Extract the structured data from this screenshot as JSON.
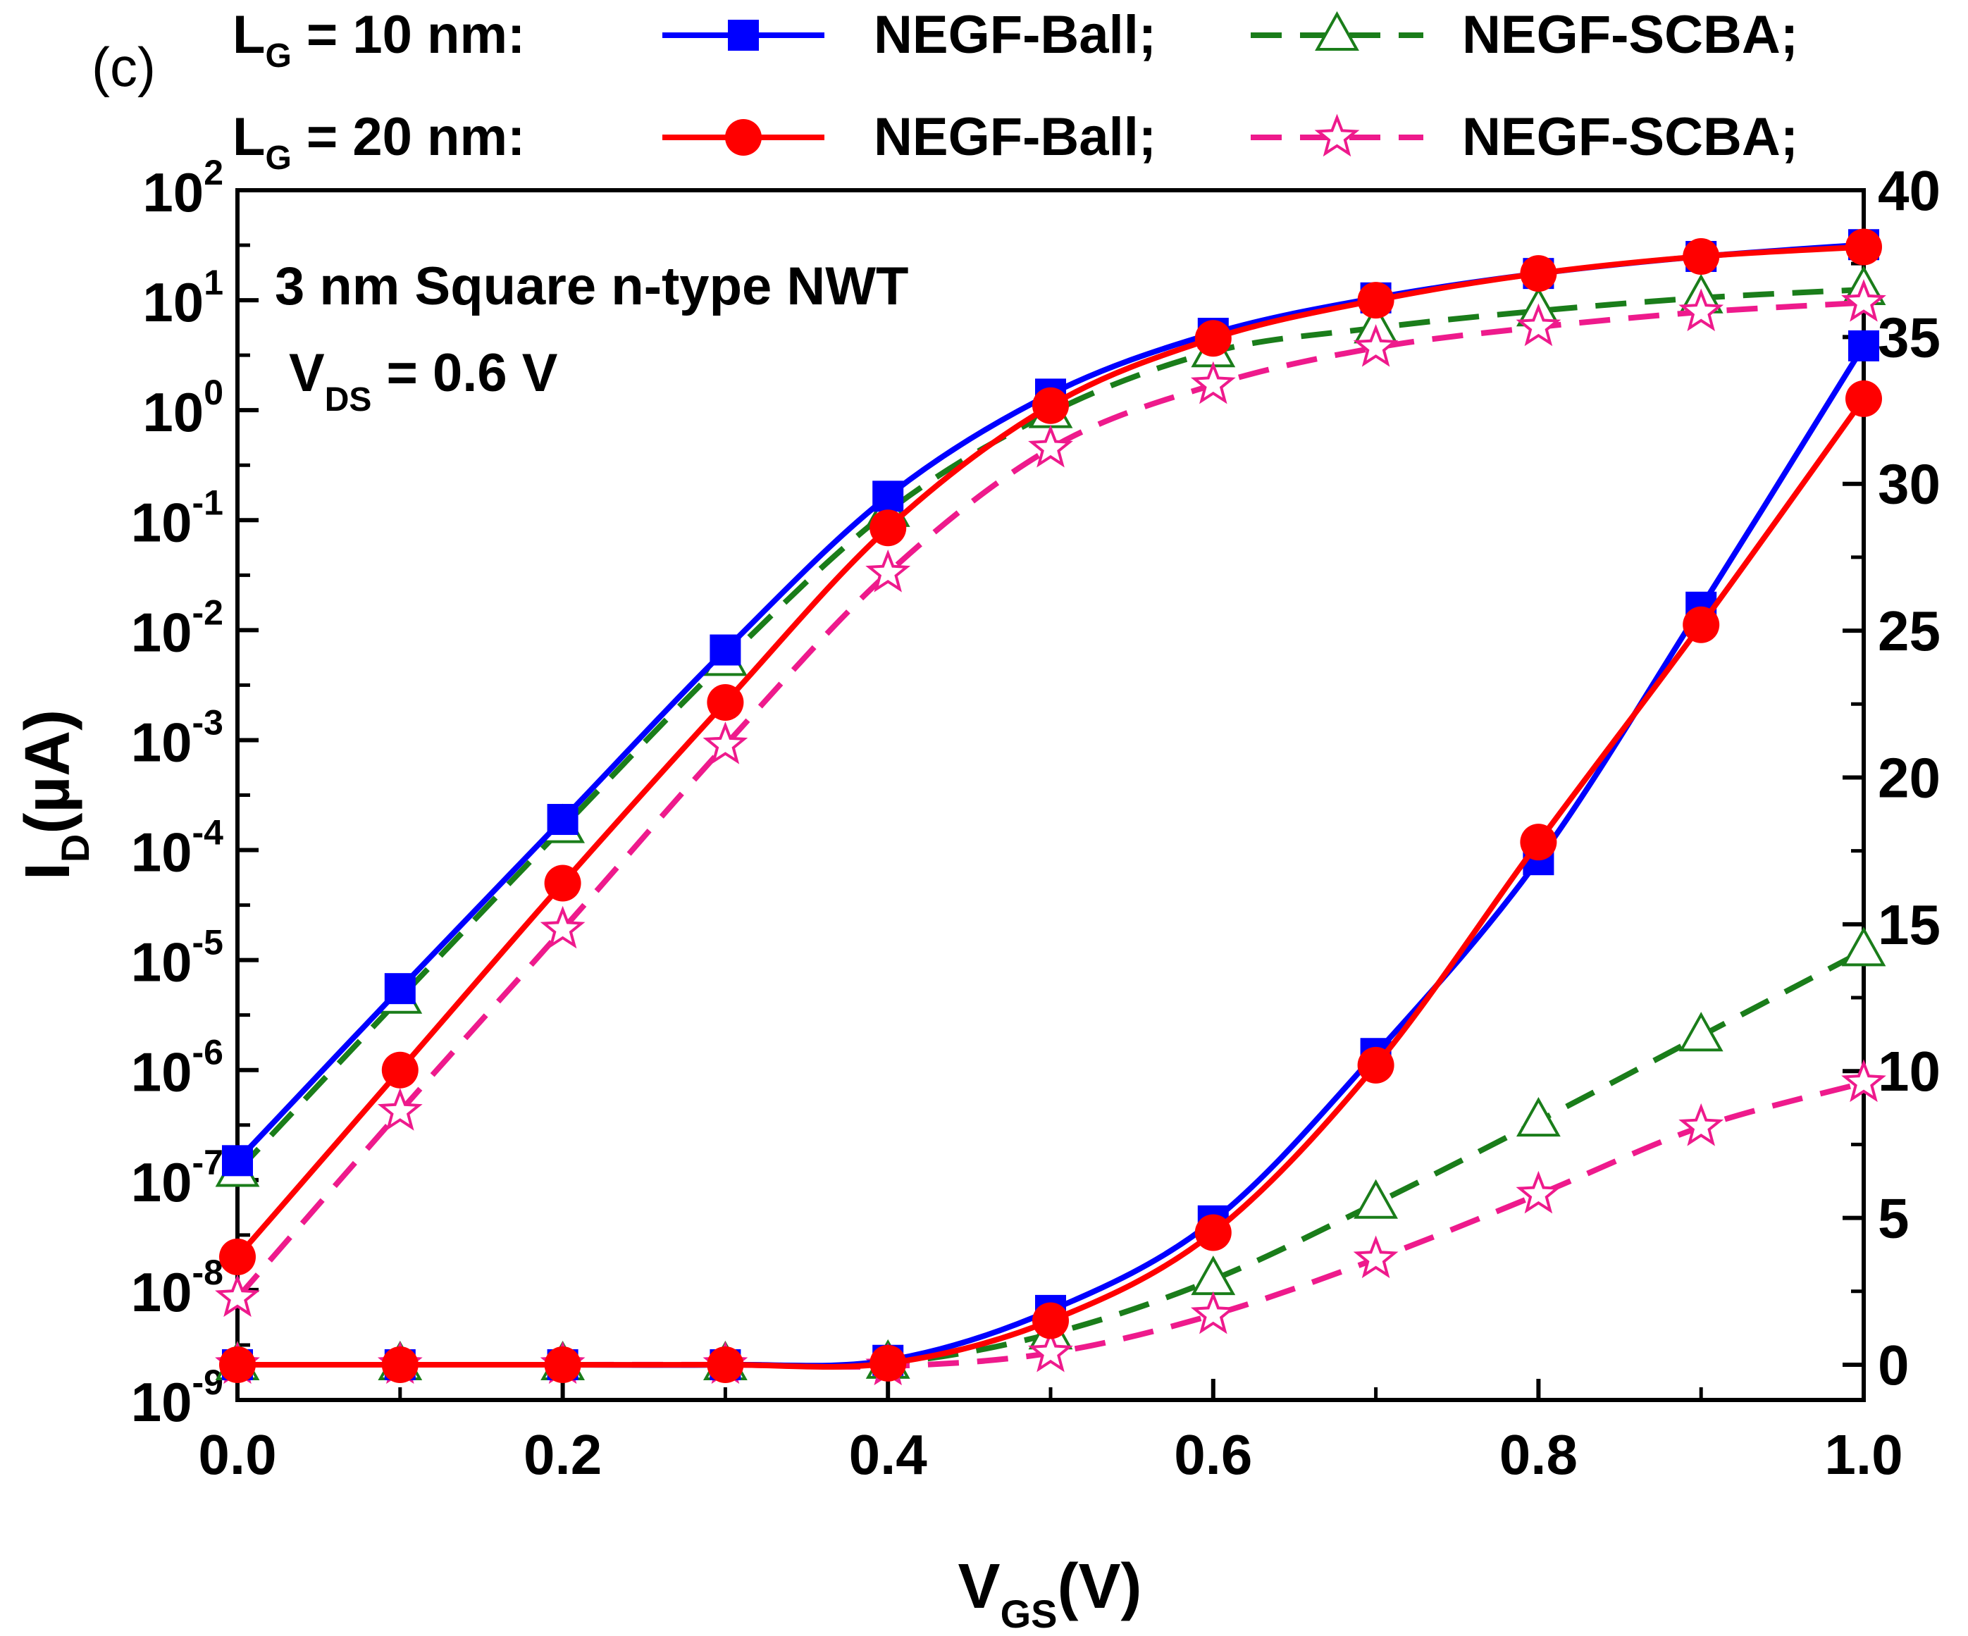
{
  "panel_label": "(c)",
  "legend": {
    "row1_prefix": "L",
    "row1_prefix_sub": "G",
    "row1_value": " = 10 nm:",
    "row2_prefix": "L",
    "row2_prefix_sub": "G",
    "row2_value": " = 20 nm:",
    "ball_label": "NEGF-Ball;",
    "scba_label": "NEGF-SCBA;"
  },
  "annotation": {
    "line1": "3 nm Square n-type NWT",
    "line2_main": "V",
    "line2_sub": "DS",
    "line2_rest": " = 0.6 V"
  },
  "colors": {
    "lg10_ball": "#0000ff",
    "lg10_scba": "#1a7d1a",
    "lg20_ball": "#ff0000",
    "lg20_scba": "#ee1a8c"
  },
  "chart_data": {
    "type": "line",
    "x": [
      0.0,
      0.1,
      0.2,
      0.3,
      0.4,
      0.5,
      0.6,
      0.7,
      0.8,
      0.9,
      1.0
    ],
    "xlabel_main": "V",
    "xlabel_sub": "GS",
    "xlabel_rest": "(V)",
    "xlim": [
      0.0,
      1.0
    ],
    "xticks": [
      "0.0",
      "0.2",
      "0.4",
      "0.6",
      "0.8",
      "1.0"
    ],
    "left_axis": {
      "scale": "log",
      "ylabel_main": "I",
      "ylabel_sub": "D",
      "ylabel_rest": "(µA)",
      "ylim": [
        1e-09,
        100
      ],
      "ticks": [
        {
          "base": "10",
          "exp": "2"
        },
        {
          "base": "10",
          "exp": "1"
        },
        {
          "base": "10",
          "exp": "0"
        },
        {
          "base": "10",
          "exp": "-1"
        },
        {
          "base": "10",
          "exp": "-2"
        },
        {
          "base": "10",
          "exp": "-3"
        },
        {
          "base": "10",
          "exp": "-4"
        },
        {
          "base": "10",
          "exp": "-5"
        },
        {
          "base": "10",
          "exp": "-6"
        },
        {
          "base": "10",
          "exp": "-7"
        },
        {
          "base": "10",
          "exp": "-8"
        },
        {
          "base": "10",
          "exp": "-9"
        }
      ]
    },
    "right_axis": {
      "scale": "linear",
      "ylim": [
        -1.2,
        40
      ],
      "ticks": [
        "0",
        "5",
        "10",
        "15",
        "20",
        "25",
        "30",
        "35",
        "40"
      ]
    },
    "series": [
      {
        "name": "L_G = 10 nm NEGF-Ball",
        "group": "lg10_ball",
        "style": "solid",
        "marker": "square",
        "log_values": [
          1.5e-07,
          5.5e-06,
          0.00019,
          0.0066,
          0.165,
          1.4,
          5.0,
          10.5,
          17.5,
          25.0,
          32.0
        ],
        "linear_values": [
          0.0,
          0.0,
          0.0,
          0.0,
          0.15,
          1.85,
          4.9,
          10.6,
          17.2,
          25.8,
          34.7
        ]
      },
      {
        "name": "L_G = 10 nm NEGF-SCBA",
        "group": "lg10_scba",
        "style": "dashed",
        "marker": "triangle",
        "log_values": [
          1.2e-07,
          4.5e-06,
          0.00016,
          0.0053,
          0.12,
          0.95,
          3.4,
          5.6,
          8.0,
          10.5,
          12.5
        ],
        "linear_values": [
          0.0,
          0.0,
          0.0,
          0.0,
          0.05,
          1.05,
          2.9,
          5.5,
          8.3,
          11.2,
          14.1
        ]
      },
      {
        "name": "L_G = 20 nm NEGF-Ball",
        "group": "lg20_ball",
        "style": "solid",
        "marker": "circle",
        "log_values": [
          2e-08,
          1e-06,
          5e-05,
          0.0022,
          0.085,
          1.1,
          4.5,
          10.0,
          17.5,
          25.0,
          30.5
        ],
        "linear_values": [
          0.0,
          0.0,
          0.0,
          0.0,
          0.05,
          1.5,
          4.5,
          10.2,
          17.8,
          25.2,
          32.9
        ]
      },
      {
        "name": "L_G = 20 nm NEGF-SCBA",
        "group": "lg20_scba",
        "style": "dashed",
        "marker": "star",
        "log_values": [
          8.5e-09,
          4.2e-07,
          1.9e-05,
          0.0009,
          0.033,
          0.45,
          1.7,
          3.7,
          5.7,
          7.8,
          9.5
        ],
        "linear_values": [
          0.0,
          0.0,
          0.0,
          0.0,
          -0.05,
          0.4,
          1.7,
          3.6,
          5.8,
          8.1,
          9.6
        ]
      }
    ]
  }
}
